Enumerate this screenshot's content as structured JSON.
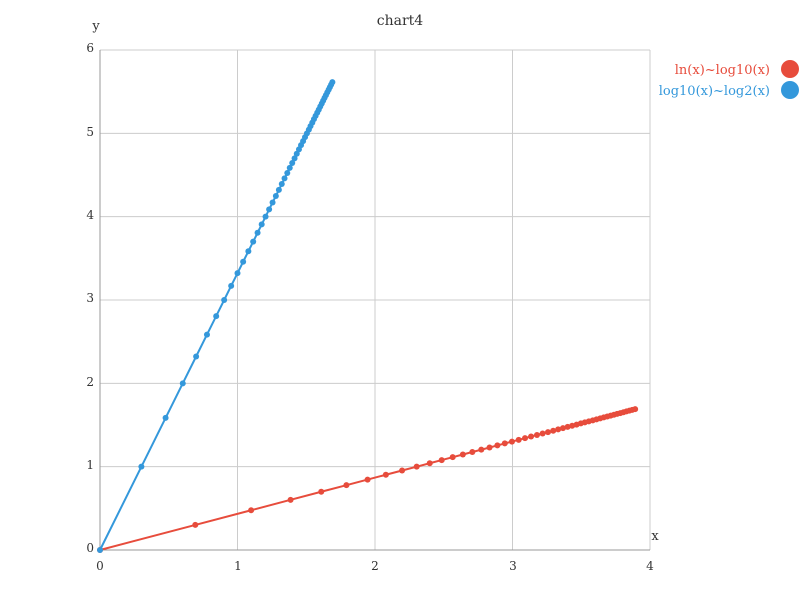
{
  "chart_data": {
    "type": "line",
    "title": "chart4",
    "xlabel": "x",
    "ylabel": "y",
    "xlim": [
      0,
      4
    ],
    "ylim": [
      0,
      6
    ],
    "x_ticks": [
      "0",
      "1",
      "2",
      "3",
      "4"
    ],
    "y_ticks": [
      "0",
      "1",
      "2",
      "3",
      "4",
      "5",
      "6"
    ],
    "grid": true,
    "legend_position": "top-right",
    "series": [
      {
        "name": "ln(x)~log10(x)",
        "color": "#e74c3c",
        "points": [
          [
            0,
            0
          ],
          [
            0.693,
            0.301
          ],
          [
            1.099,
            0.477
          ],
          [
            1.386,
            0.602
          ],
          [
            1.609,
            0.699
          ],
          [
            1.792,
            0.778
          ],
          [
            1.946,
            0.845
          ],
          [
            2.079,
            0.903
          ],
          [
            2.197,
            0.954
          ],
          [
            2.303,
            1.0
          ],
          [
            2.398,
            1.041
          ],
          [
            2.485,
            1.079
          ],
          [
            2.565,
            1.114
          ],
          [
            2.639,
            1.146
          ],
          [
            2.708,
            1.176
          ],
          [
            2.773,
            1.204
          ],
          [
            2.833,
            1.23
          ],
          [
            2.89,
            1.255
          ],
          [
            2.944,
            1.279
          ],
          [
            2.996,
            1.301
          ],
          [
            3.045,
            1.322
          ],
          [
            3.091,
            1.342
          ],
          [
            3.135,
            1.362
          ],
          [
            3.178,
            1.38
          ],
          [
            3.219,
            1.398
          ],
          [
            3.258,
            1.415
          ],
          [
            3.296,
            1.431
          ],
          [
            3.332,
            1.447
          ],
          [
            3.367,
            1.462
          ],
          [
            3.401,
            1.477
          ],
          [
            3.434,
            1.491
          ],
          [
            3.466,
            1.505
          ],
          [
            3.497,
            1.519
          ],
          [
            3.526,
            1.531
          ],
          [
            3.555,
            1.544
          ],
          [
            3.584,
            1.556
          ],
          [
            3.611,
            1.568
          ],
          [
            3.638,
            1.58
          ],
          [
            3.664,
            1.591
          ],
          [
            3.689,
            1.602
          ],
          [
            3.714,
            1.613
          ],
          [
            3.738,
            1.623
          ],
          [
            3.761,
            1.633
          ],
          [
            3.784,
            1.643
          ],
          [
            3.807,
            1.653
          ],
          [
            3.829,
            1.663
          ],
          [
            3.85,
            1.672
          ],
          [
            3.871,
            1.681
          ],
          [
            3.892,
            1.69
          ]
        ]
      },
      {
        "name": "log10(x)~log2(x)",
        "color": "#3498db",
        "points": [
          [
            0,
            0
          ],
          [
            0.301,
            1.0
          ],
          [
            0.477,
            1.585
          ],
          [
            0.602,
            2.0
          ],
          [
            0.699,
            2.322
          ],
          [
            0.778,
            2.585
          ],
          [
            0.845,
            2.807
          ],
          [
            0.903,
            3.0
          ],
          [
            0.954,
            3.17
          ],
          [
            1.0,
            3.322
          ],
          [
            1.041,
            3.459
          ],
          [
            1.079,
            3.585
          ],
          [
            1.114,
            3.7
          ],
          [
            1.146,
            3.807
          ],
          [
            1.176,
            3.907
          ],
          [
            1.204,
            4.0
          ],
          [
            1.23,
            4.087
          ],
          [
            1.255,
            4.17
          ],
          [
            1.279,
            4.248
          ],
          [
            1.301,
            4.322
          ],
          [
            1.322,
            4.392
          ],
          [
            1.342,
            4.459
          ],
          [
            1.362,
            4.524
          ],
          [
            1.38,
            4.585
          ],
          [
            1.398,
            4.644
          ],
          [
            1.415,
            4.7
          ],
          [
            1.431,
            4.755
          ],
          [
            1.447,
            4.807
          ],
          [
            1.462,
            4.858
          ],
          [
            1.477,
            4.907
          ],
          [
            1.491,
            4.954
          ],
          [
            1.505,
            5.0
          ],
          [
            1.519,
            5.044
          ],
          [
            1.531,
            5.087
          ],
          [
            1.544,
            5.129
          ],
          [
            1.556,
            5.17
          ],
          [
            1.568,
            5.209
          ],
          [
            1.58,
            5.248
          ],
          [
            1.591,
            5.285
          ],
          [
            1.602,
            5.322
          ],
          [
            1.613,
            5.358
          ],
          [
            1.623,
            5.392
          ],
          [
            1.633,
            5.426
          ],
          [
            1.643,
            5.459
          ],
          [
            1.653,
            5.492
          ],
          [
            1.663,
            5.524
          ],
          [
            1.672,
            5.555
          ],
          [
            1.681,
            5.585
          ],
          [
            1.69,
            5.615
          ]
        ]
      }
    ]
  }
}
